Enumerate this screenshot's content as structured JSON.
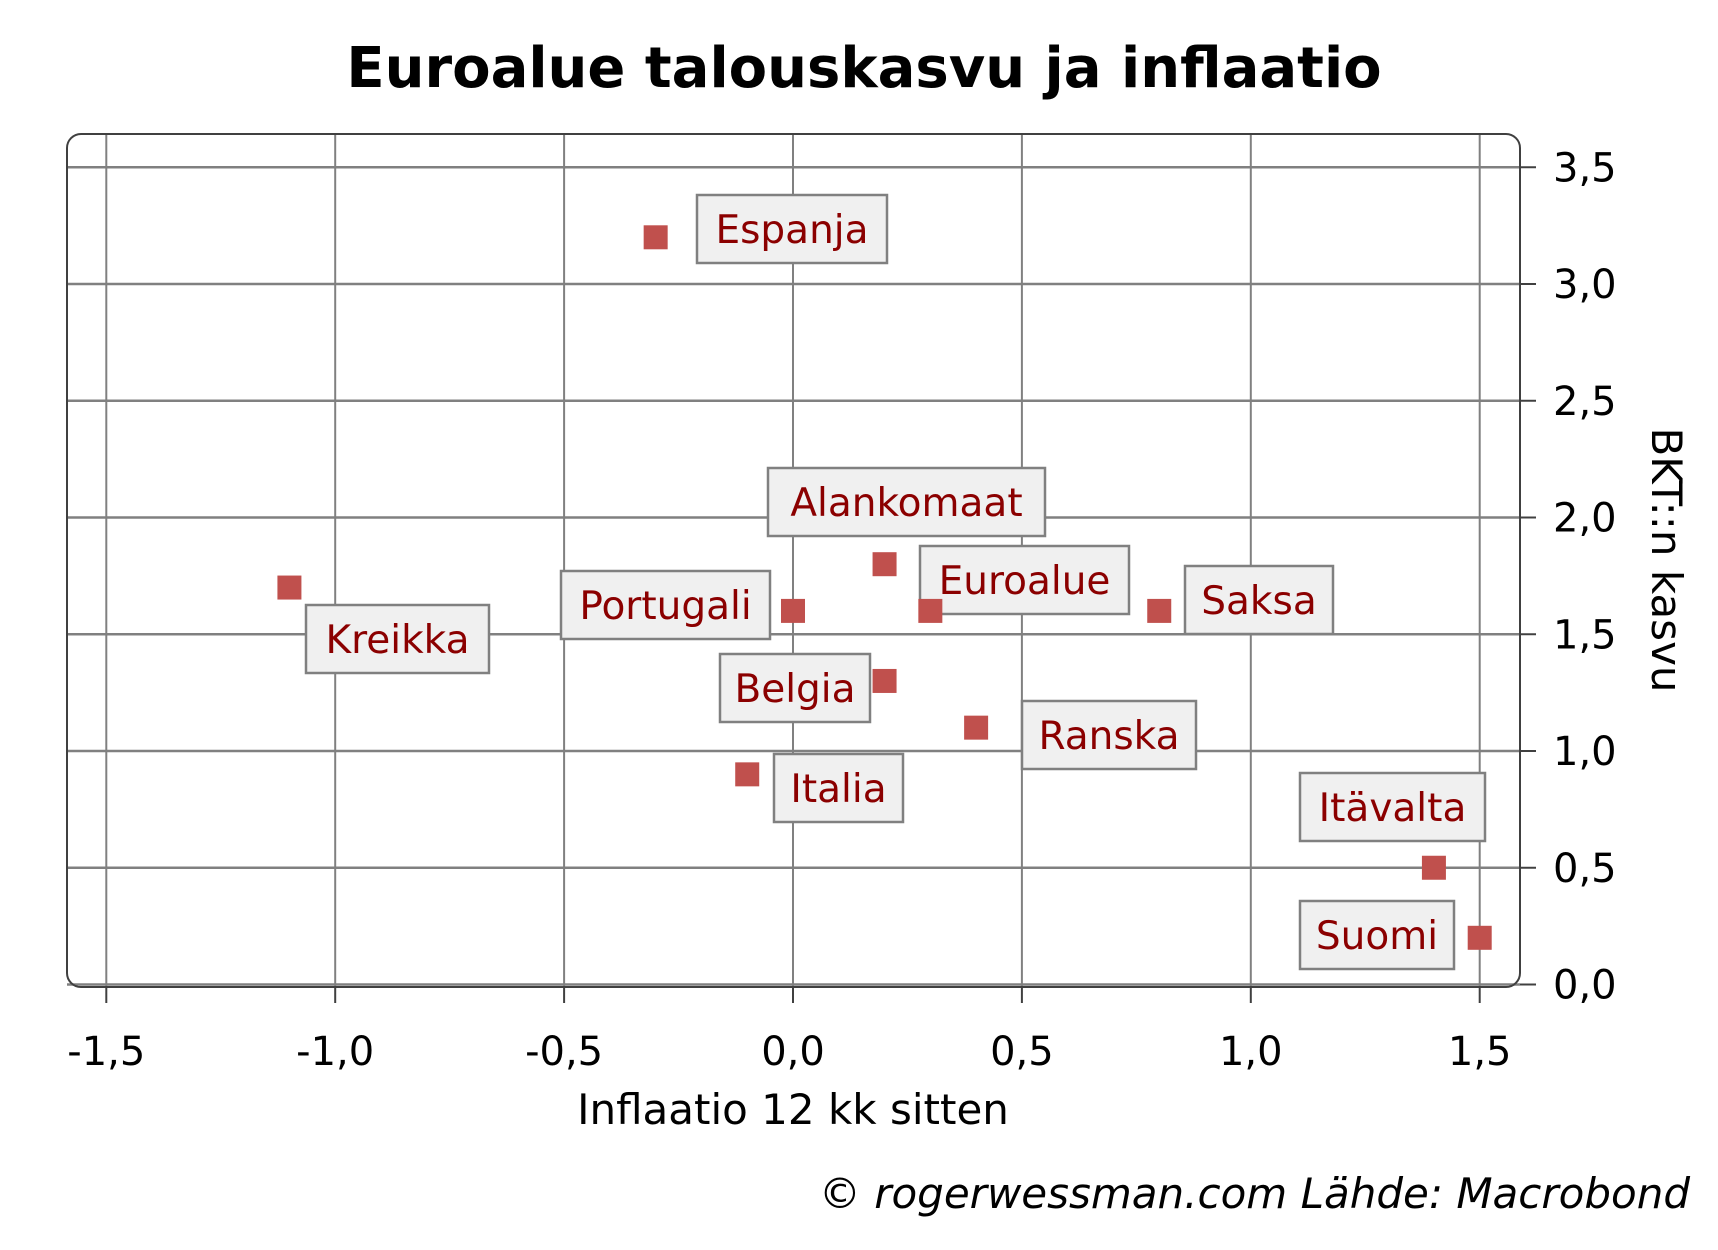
{
  "chart_data": {
    "type": "scatter",
    "title": "Euroalue talouskasvu ja inflaatio",
    "xlabel": "Inflaatio 12 kk sitten",
    "ylabel": "BKT::n kasvu",
    "footer": "© rogerwessman.com Lähde: Macrobond",
    "xlim": [
      -1.6,
      1.6
    ],
    "ylim": [
      0.0,
      3.6
    ],
    "xticks": [
      -1.5,
      -1.0,
      -0.5,
      0.0,
      0.5,
      1.0,
      1.5
    ],
    "xtick_labels": [
      "-1,5",
      "-1,0",
      "-0,5",
      "0,0",
      "0,5",
      "1,0",
      "1,5"
    ],
    "yticks": [
      0.0,
      0.5,
      1.0,
      1.5,
      2.0,
      2.5,
      3.0,
      3.5
    ],
    "ytick_labels": [
      "0,0",
      "0,5",
      "1,0",
      "1,5",
      "2,0",
      "2,5",
      "3,0",
      "3,5"
    ],
    "grid": true,
    "marker_color": "#c0504d",
    "label_color": "#8b0000",
    "points": [
      {
        "name": "Espanja",
        "x": -0.3,
        "y": 3.2
      },
      {
        "name": "Alankomaat",
        "x": 0.2,
        "y": 1.8
      },
      {
        "name": "Euroalue",
        "x": 0.3,
        "y": 1.6
      },
      {
        "name": "Portugali",
        "x": 0.0,
        "y": 1.6
      },
      {
        "name": "Saksa",
        "x": 0.8,
        "y": 1.6
      },
      {
        "name": "Kreikka",
        "x": -1.1,
        "y": 1.7
      },
      {
        "name": "Belgia",
        "x": 0.2,
        "y": 1.3
      },
      {
        "name": "Ranska",
        "x": 0.4,
        "y": 1.1
      },
      {
        "name": "Italia",
        "x": -0.1,
        "y": 0.9
      },
      {
        "name": "Itävalta",
        "x": 1.4,
        "y": 0.5
      },
      {
        "name": "Suomi",
        "x": 1.5,
        "y": 0.2
      }
    ]
  }
}
